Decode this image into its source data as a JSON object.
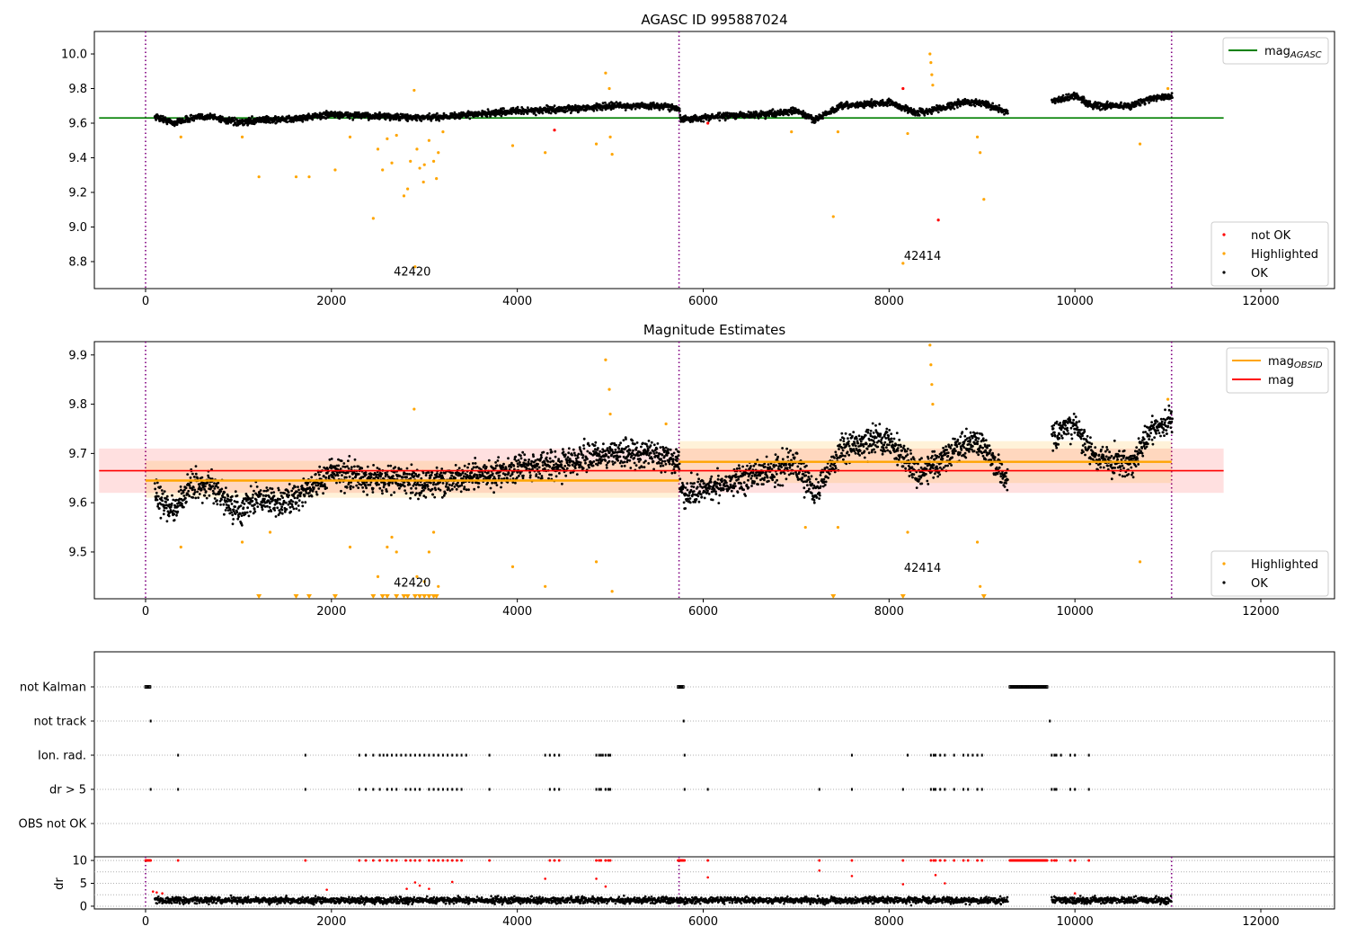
{
  "chart_data": [
    {
      "type": "scatter",
      "title": "AGASC ID 995887024",
      "xlim": [
        -551,
        12793
      ],
      "ylim": [
        8.644,
        10.13
      ],
      "xticks": [
        0,
        2000,
        4000,
        6000,
        8000,
        10000,
        12000
      ],
      "yticks": [
        8.8,
        9.0,
        9.2,
        9.4,
        9.6,
        9.8,
        10.0
      ],
      "legend_top": {
        "position": "top-right",
        "entries": [
          {
            "label": "mag",
            "sub": "AGASC",
            "color": "#008000"
          }
        ]
      },
      "legend_bottom": {
        "position": "bottom-right",
        "entries": [
          {
            "label": "not OK",
            "color": "#ff0000"
          },
          {
            "label": "Highlighted",
            "color": "#ffa500"
          },
          {
            "label": "OK",
            "color": "#000000"
          }
        ]
      },
      "mag_agasc": 9.63,
      "ok_trend": {
        "x": [
          100,
          300,
          500,
          700,
          1000,
          1200,
          1500,
          2000,
          2500,
          3000,
          3500,
          4000,
          4500,
          5000,
          5500,
          5740,
          5760,
          6200,
          6600,
          7000,
          7200,
          7500,
          8000,
          8300,
          8500,
          8800,
          9000,
          9280,
          9750,
          10000,
          10200,
          10600,
          10800,
          11050
        ],
        "y": [
          9.64,
          9.6,
          9.63,
          9.64,
          9.6,
          9.62,
          9.62,
          9.65,
          9.64,
          9.63,
          9.65,
          9.67,
          9.68,
          9.7,
          9.7,
          9.69,
          9.62,
          9.64,
          9.65,
          9.67,
          9.62,
          9.7,
          9.72,
          9.66,
          9.68,
          9.72,
          9.72,
          9.66,
          9.72,
          9.76,
          9.7,
          9.7,
          9.74,
          9.76
        ]
      },
      "highlighted": [
        [
          380,
          9.52
        ],
        [
          1040,
          9.52
        ],
        [
          1220,
          9.29
        ],
        [
          1620,
          9.29
        ],
        [
          1760,
          9.29
        ],
        [
          2040,
          9.33
        ],
        [
          2200,
          9.52
        ],
        [
          2450,
          9.05
        ],
        [
          2500,
          9.45
        ],
        [
          2550,
          9.33
        ],
        [
          2600,
          9.51
        ],
        [
          2650,
          9.37
        ],
        [
          2700,
          9.53
        ],
        [
          2780,
          9.18
        ],
        [
          2820,
          9.22
        ],
        [
          2850,
          9.38
        ],
        [
          2890,
          9.79
        ],
        [
          2900,
          8.77
        ],
        [
          2920,
          9.45
        ],
        [
          2950,
          9.34
        ],
        [
          2990,
          9.26
        ],
        [
          3000,
          9.36
        ],
        [
          3050,
          9.5
        ],
        [
          3100,
          9.38
        ],
        [
          3130,
          9.28
        ],
        [
          3150,
          9.43
        ],
        [
          3200,
          9.55
        ],
        [
          3950,
          9.47
        ],
        [
          4300,
          9.43
        ],
        [
          4850,
          9.48
        ],
        [
          4950,
          9.89
        ],
        [
          4990,
          9.8
        ],
        [
          5000,
          9.52
        ],
        [
          5020,
          9.42
        ],
        [
          6950,
          9.55
        ],
        [
          7400,
          9.06
        ],
        [
          7450,
          9.55
        ],
        [
          8150,
          8.79
        ],
        [
          8200,
          9.54
        ],
        [
          8440,
          10.0
        ],
        [
          8450,
          9.95
        ],
        [
          8460,
          9.88
        ],
        [
          8470,
          9.82
        ],
        [
          8950,
          9.52
        ],
        [
          8980,
          9.43
        ],
        [
          9020,
          9.16
        ],
        [
          10700,
          9.48
        ],
        [
          11000,
          9.8
        ]
      ],
      "not_ok": [
        [
          4400,
          9.56
        ],
        [
          8530,
          9.04
        ],
        [
          6050,
          9.6
        ],
        [
          8150,
          9.8
        ]
      ],
      "annotations": [
        {
          "text": "42420",
          "x": 2670,
          "y": 8.72
        },
        {
          "text": "42414",
          "x": 8160,
          "y": 8.81
        }
      ],
      "obsid_boundaries": [
        0,
        5740,
        11040
      ]
    },
    {
      "type": "scatter",
      "title": "Magnitude Estimates",
      "xlim": [
        -551,
        12793
      ],
      "ylim": [
        9.405,
        9.927
      ],
      "xticks": [
        0,
        2000,
        4000,
        6000,
        8000,
        10000,
        12000
      ],
      "yticks": [
        9.5,
        9.6,
        9.7,
        9.8,
        9.9
      ],
      "legend_top": {
        "position": "top-right",
        "entries": [
          {
            "label": "mag",
            "sub": "OBSID",
            "color": "#ffa500"
          },
          {
            "label": "mag",
            "sub": "",
            "color": "#ff0000"
          }
        ]
      },
      "legend_bottom": {
        "position": "bottom-right",
        "entries": [
          {
            "label": "Highlighted",
            "color": "#ffa500"
          },
          {
            "label": "OK",
            "color": "#000000"
          }
        ]
      },
      "mag": {
        "value": 9.665,
        "band": [
          9.62,
          9.71
        ],
        "x": [
          -500,
          11600
        ]
      },
      "mag_obsid": [
        {
          "x": [
            0,
            5740
          ],
          "value": 9.645,
          "band": [
            9.61,
            9.685
          ]
        },
        {
          "x": [
            5740,
            11040
          ],
          "value": 9.683,
          "band": [
            9.64,
            9.725
          ]
        }
      ],
      "ok_trend": {
        "x": [
          100,
          300,
          500,
          700,
          1000,
          1200,
          1500,
          2000,
          2500,
          3000,
          3500,
          4000,
          4500,
          5000,
          5500,
          5740,
          5760,
          6200,
          6600,
          7000,
          7200,
          7500,
          8000,
          8300,
          8500,
          8800,
          9000,
          9280,
          9750,
          10000,
          10200,
          10600,
          10800,
          11050
        ],
        "y": [
          9.62,
          9.58,
          9.64,
          9.63,
          9.58,
          9.61,
          9.6,
          9.66,
          9.65,
          9.64,
          9.65,
          9.67,
          9.68,
          9.7,
          9.7,
          9.68,
          9.61,
          9.64,
          9.66,
          9.68,
          9.62,
          9.71,
          9.73,
          9.66,
          9.68,
          9.72,
          9.72,
          9.64,
          9.73,
          9.76,
          9.69,
          9.68,
          9.74,
          9.77
        ]
      },
      "highlighted": [
        [
          380,
          9.51
        ],
        [
          1040,
          9.52
        ],
        [
          1340,
          9.54
        ],
        [
          2200,
          9.51
        ],
        [
          2500,
          9.45
        ],
        [
          2600,
          9.51
        ],
        [
          2650,
          9.53
        ],
        [
          2700,
          9.5
        ],
        [
          2890,
          9.79
        ],
        [
          2920,
          9.45
        ],
        [
          3000,
          9.44
        ],
        [
          3050,
          9.5
        ],
        [
          3100,
          9.54
        ],
        [
          3150,
          9.43
        ],
        [
          3950,
          9.47
        ],
        [
          4300,
          9.43
        ],
        [
          4850,
          9.48
        ],
        [
          4950,
          9.89
        ],
        [
          4990,
          9.83
        ],
        [
          5000,
          9.78
        ],
        [
          5020,
          9.42
        ],
        [
          5600,
          9.76
        ],
        [
          7100,
          9.55
        ],
        [
          7450,
          9.55
        ],
        [
          8200,
          9.54
        ],
        [
          8440,
          9.92
        ],
        [
          8450,
          9.88
        ],
        [
          8460,
          9.84
        ],
        [
          8470,
          9.8
        ],
        [
          8950,
          9.52
        ],
        [
          8980,
          9.43
        ],
        [
          10700,
          9.48
        ],
        [
          11000,
          9.81
        ]
      ],
      "below_range_markers": [
        1220,
        1620,
        1760,
        2040,
        2450,
        2550,
        2600,
        2700,
        2780,
        2820,
        2900,
        2950,
        3000,
        3050,
        3100,
        3130,
        7400,
        8150,
        9020
      ],
      "annotations": [
        {
          "text": "42420",
          "x": 2670,
          "y": 9.43
        },
        {
          "text": "42414",
          "x": 8160,
          "y": 9.46
        }
      ],
      "obsid_boundaries": [
        0,
        5740,
        11040
      ]
    },
    {
      "type": "scatter",
      "title": "",
      "categories": [
        "not Kalman",
        "not track",
        "Ion. rad.",
        "dr > 5",
        "OBS not OK"
      ],
      "flags": {
        "not Kalman": {
          "ranges": [
            [
              0,
              50
            ],
            [
              5730,
              5790
            ],
            [
              9300,
              9700
            ]
          ]
        },
        "not track": {
          "x": [
            55,
            5790,
            9730
          ]
        },
        "Ion. rad.": {
          "x": [
            350,
            1720,
            2300,
            2370,
            2450,
            2520,
            2560,
            2600,
            2650,
            2700,
            2750,
            2800,
            2850,
            2900,
            2950,
            3000,
            3050,
            3100,
            3150,
            3200,
            3250,
            3300,
            3350,
            3400,
            3450,
            3700,
            4300,
            4350,
            4400,
            4450,
            4850,
            4880,
            4900,
            4920,
            4950,
            4980,
            5000,
            5800,
            7600,
            8200,
            8450,
            8480,
            8500,
            8550,
            8600,
            8700,
            8800,
            8850,
            8900,
            8950,
            9000,
            9750,
            9780,
            9800,
            9850,
            9950,
            10000,
            10150
          ]
        },
        "dr > 5": {
          "x": [
            55,
            350,
            1720,
            2300,
            2370,
            2450,
            2520,
            2600,
            2650,
            2700,
            2800,
            2850,
            2900,
            2950,
            3050,
            3100,
            3150,
            3200,
            3250,
            3300,
            3350,
            3400,
            3700,
            4350,
            4400,
            4450,
            4850,
            4880,
            4900,
            4950,
            4980,
            5000,
            5800,
            6050,
            7250,
            7600,
            8150,
            8450,
            8480,
            8500,
            8550,
            8600,
            8700,
            8800,
            8850,
            8950,
            9000,
            9750,
            9780,
            9800,
            9950,
            10000,
            10150
          ]
        },
        "OBS not OK": {
          "x": []
        }
      }
    },
    {
      "type": "scatter",
      "ylabel": "dr",
      "ylim": [
        -0.6,
        10.8
      ],
      "yticks": [
        0,
        5,
        10
      ],
      "xticks": [
        0,
        2000,
        4000,
        6000,
        8000,
        10000,
        12000
      ],
      "ok_range": [
        [
          100,
          9280
        ],
        [
          9750,
          11040
        ]
      ],
      "red_scatter": [
        [
          80,
          3.2
        ],
        [
          120,
          3
        ],
        [
          180,
          2.8
        ],
        [
          1950,
          3.6
        ],
        [
          2810,
          3.8
        ],
        [
          2900,
          5.2
        ],
        [
          2950,
          4.5
        ],
        [
          3050,
          3.8
        ],
        [
          3300,
          5.3
        ],
        [
          4300,
          6
        ],
        [
          4850,
          6
        ],
        [
          4950,
          4.3
        ],
        [
          6050,
          6.3
        ],
        [
          7250,
          7.8
        ],
        [
          7600,
          6.6
        ],
        [
          8150,
          4.8
        ],
        [
          8500,
          6.8
        ],
        [
          8600,
          5
        ],
        [
          10000,
          2.8
        ]
      ],
      "obsid_boundaries": [
        0,
        5740,
        11040
      ]
    }
  ]
}
